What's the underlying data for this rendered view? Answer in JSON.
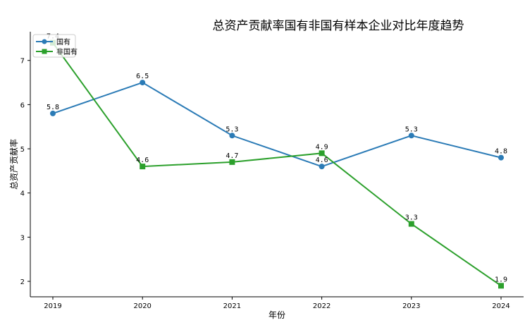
{
  "chart_data": {
    "type": "line",
    "title": "总资产贡献率国有非国有样本企业对比年度趋势",
    "xlabel": "年份",
    "ylabel": "总资产贡献率",
    "categories": [
      "2019",
      "2020",
      "2021",
      "2022",
      "2023",
      "2024"
    ],
    "ylim": [
      1.65,
      7.65
    ],
    "yticks": [
      2,
      3,
      4,
      5,
      6,
      7
    ],
    "grid": false,
    "legend_position": "top-left",
    "series": [
      {
        "name": "国有",
        "values": [
          5.8,
          6.5,
          5.3,
          4.6,
          5.3,
          4.8
        ],
        "color": "#2b7bb6",
        "marker": "circle"
      },
      {
        "name": "非国有",
        "values": [
          7.4,
          4.6,
          4.7,
          4.9,
          3.3,
          1.9
        ],
        "color": "#2ca02c",
        "marker": "square"
      }
    ]
  }
}
